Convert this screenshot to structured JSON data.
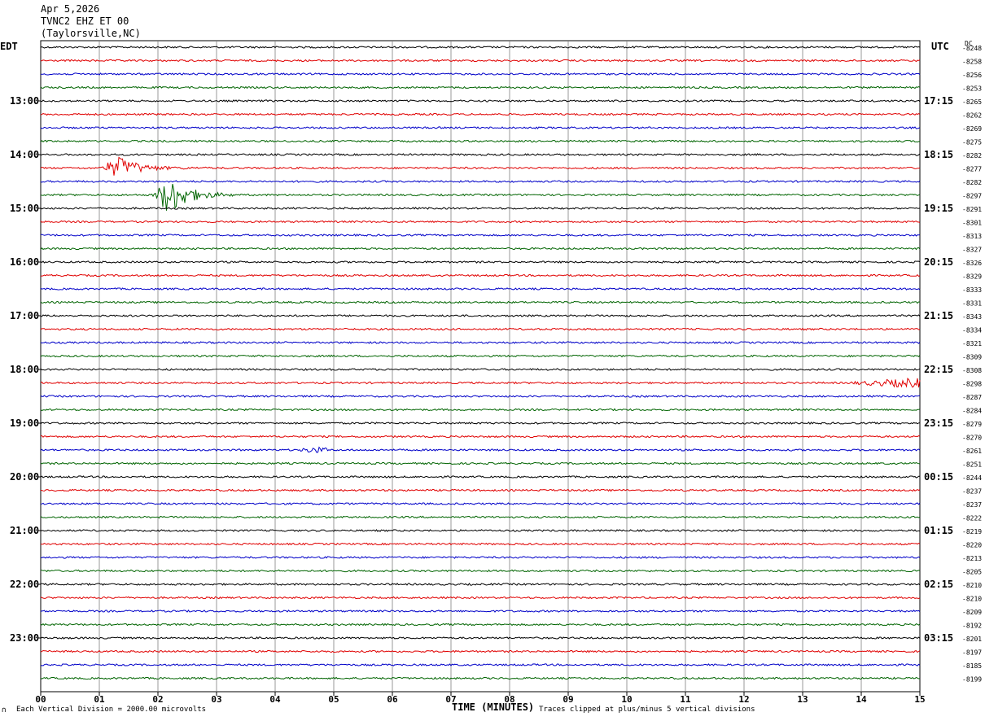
{
  "header": {
    "date": "Apr 5,2026",
    "station": "TVNC2 EHZ ET 00",
    "location": "(Taylorsville,NC)"
  },
  "left_zone": "EDT",
  "right_zone": "UTC",
  "dc_label": "DC",
  "footer": {
    "scale": "Each Vertical Division = 2000.00 microvolts",
    "clip": "Traces clipped at plus/minus 5 vertical divisions",
    "corner_mark": "∩"
  },
  "colors": {
    "trace_cycle": [
      "#000000",
      "#e00000",
      "#0000c8",
      "#006400"
    ],
    "grid": "#808080"
  },
  "chart_data": {
    "type": "line",
    "title": "TVNC2 EHZ ET 00 (Taylorsville,NC)",
    "xlabel": "TIME (MINUTES)",
    "x_ticks": [
      "00",
      "01",
      "02",
      "03",
      "04",
      "05",
      "06",
      "07",
      "08",
      "09",
      "10",
      "11",
      "12",
      "13",
      "14",
      "15"
    ],
    "xlim": [
      0,
      15
    ],
    "left_hour_labels": [
      "13:00",
      "14:00",
      "15:00",
      "16:00",
      "17:00",
      "18:00",
      "19:00",
      "20:00",
      "21:00",
      "22:00",
      "23:00"
    ],
    "right_hour_labels": [
      "17:15",
      "18:15",
      "19:15",
      "20:15",
      "21:15",
      "22:15",
      "23:15",
      "00:15",
      "01:15",
      "02:15",
      "03:15"
    ],
    "dc_offsets": [
      "-8248",
      "-8258",
      "-8256",
      "-8253",
      "-8265",
      "-8262",
      "-8269",
      "-8275",
      "-8282",
      "-8277",
      "-8282",
      "-8297",
      "-8291",
      "-8301",
      "-8313",
      "-8327",
      "-8326",
      "-8329",
      "-8333",
      "-8331",
      "-8343",
      "-8334",
      "-8321",
      "-8309",
      "-8308",
      "-8298",
      "-8287",
      "-8284",
      "-8279",
      "-8270",
      "-8261",
      "-8251",
      "-8244",
      "-8237",
      "-8237",
      "-8222",
      "-8219",
      "-8220",
      "-8213",
      "-8205",
      "-8210",
      "-8210",
      "-8209",
      "-8192",
      "-8201",
      "-8197",
      "-8185",
      "-8199"
    ],
    "events": [
      {
        "trace": 9,
        "start_min": 1.0,
        "peak_min": 1.35,
        "end_min": 3.0,
        "amplitude_div": 2.0
      },
      {
        "trace": 11,
        "start_min": 1.9,
        "peak_min": 2.2,
        "end_min": 3.3,
        "amplitude_div": 3.5
      },
      {
        "trace": 25,
        "start_min": 13.7,
        "peak_min": 14.95,
        "end_min": 15.0,
        "amplitude_div": 0.8
      },
      {
        "trace": 30,
        "start_min": 4.4,
        "peak_min": 4.65,
        "end_min": 4.9,
        "amplitude_div": 0.5
      }
    ]
  }
}
